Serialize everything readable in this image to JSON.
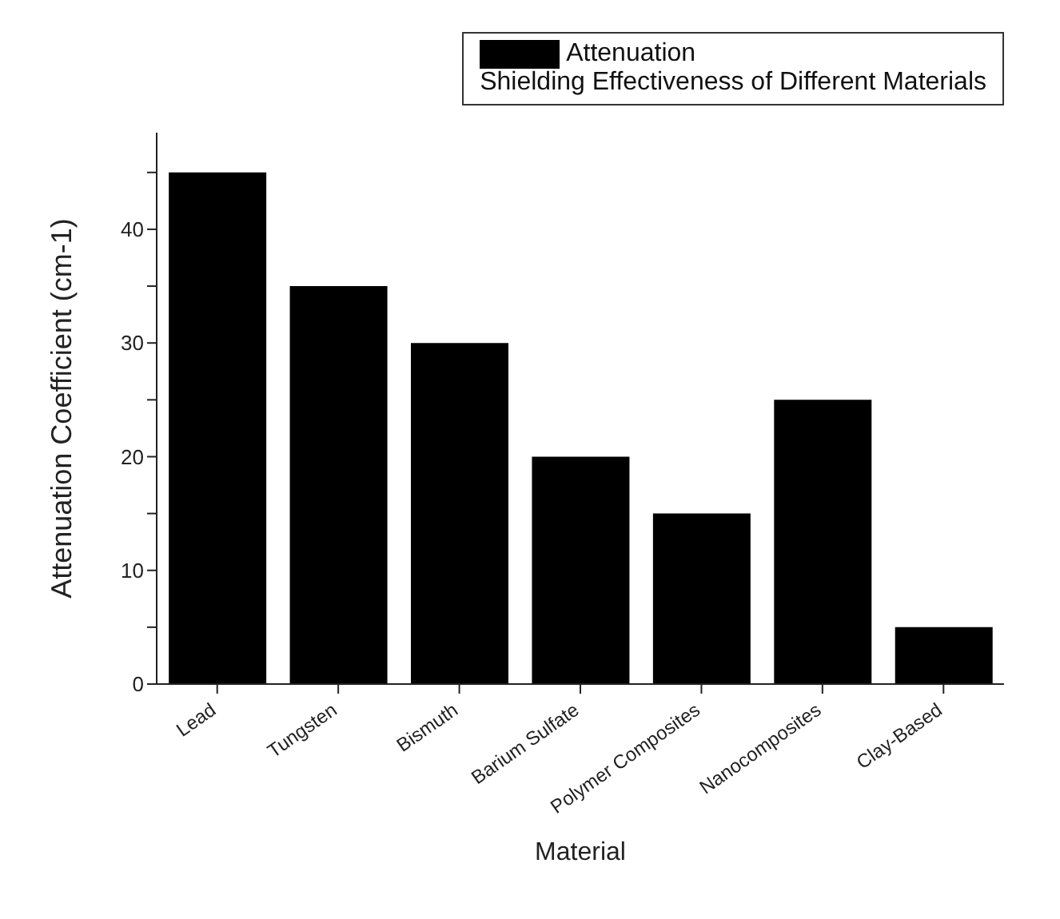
{
  "chart_data": {
    "type": "bar",
    "title": "Shielding Effectiveness of Different Materials",
    "xlabel": "Material",
    "ylabel": "Attenuation Coefficient (cm-1)",
    "categories": [
      "Lead",
      "Tungsten",
      "Bismuth",
      "Barium Sulfate",
      "Polymer Composites",
      "Nanocomposites",
      "Clay-Based"
    ],
    "series": [
      {
        "name": "Attenuation",
        "color": "#000000",
        "values": [
          45,
          35,
          30,
          20,
          15,
          25,
          5
        ]
      }
    ],
    "ylim": [
      0,
      48.5
    ],
    "yticks": [
      0,
      {
        "value": 5,
        "label": null
      },
      10,
      {
        "value": 15,
        "label": null
      },
      20,
      {
        "value": 25,
        "label": null
      },
      30,
      {
        "value": 35,
        "label": null
      },
      40,
      {
        "value": 45,
        "label": null
      }
    ],
    "grid": false,
    "legend": "top right"
  }
}
